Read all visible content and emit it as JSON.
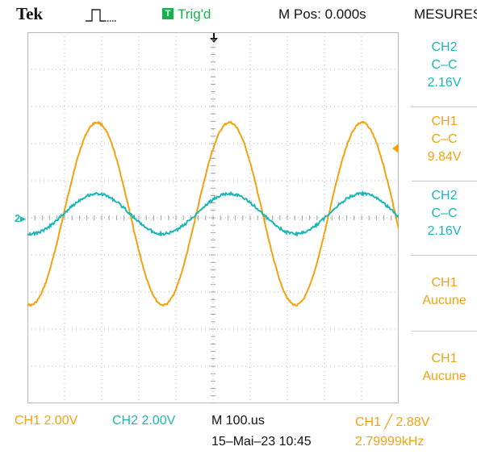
{
  "header": {
    "brand": "Tek",
    "trigger_badge": "T",
    "trigger_status": "Trig'd",
    "main_position": "M Pos: 0.000s",
    "menu_title": "MESURES"
  },
  "measurements": [
    {
      "channel": "CH2",
      "type": "C–C",
      "value": "2.16V",
      "color": "#1db6b6"
    },
    {
      "channel": "CH1",
      "type": "C–C",
      "value": "9.84V",
      "color": "#f5a10f"
    },
    {
      "channel": "CH2",
      "type": "C–C",
      "value": "2.16V",
      "color": "#1db6b6"
    },
    {
      "channel": "CH1",
      "type": "Aucune",
      "value": "",
      "color": "#f5a10f"
    },
    {
      "channel": "CH1",
      "type": "Aucune",
      "value": "",
      "color": "#f5a10f"
    }
  ],
  "channel_marker": "2▸",
  "footer": {
    "ch1_scale": "CH1  2.00V",
    "ch2_scale": "CH2  2.00V",
    "timebase": "M 100.us",
    "datetime": "15–Mai–23 10:45",
    "trigger_info": "CH1 ╱ 2.88V",
    "frequency": "2.79999kHz"
  },
  "colors": {
    "ch1": "#f5a10f",
    "ch2": "#1db6b6",
    "trig": "#16b34a",
    "grid": "#b0b0b0"
  },
  "waveforms": {
    "time_per_div_us": 100,
    "volts_per_div": 2.0,
    "ch1": {
      "vpp": 9.84,
      "frequency_khz": 2.8
    },
    "ch2": {
      "vpp": 2.16,
      "frequency_khz": 2.8
    }
  }
}
